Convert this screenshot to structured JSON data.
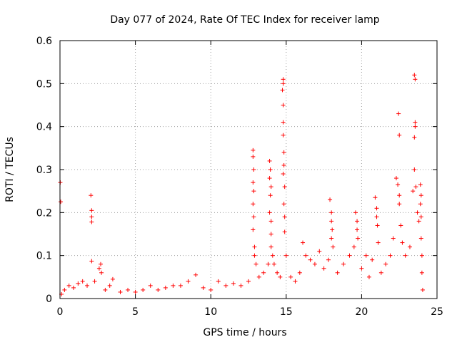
{
  "chart_data": {
    "type": "scatter",
    "title": "Day 077 of 2024, Rate Of TEC Index for receiver lamp",
    "xlabel": "GPS time / hours",
    "ylabel": "ROTI / TECUs",
    "xlim": [
      0,
      25
    ],
    "ylim": [
      0,
      0.6
    ],
    "x_ticks": [
      0,
      5,
      10,
      15,
      20,
      25
    ],
    "x_tick_labels": [
      "0",
      "5",
      "10",
      "15",
      "20",
      "25"
    ],
    "y_ticks": [
      0,
      0.1,
      0.2,
      0.3,
      0.4,
      0.5,
      0.6
    ],
    "y_tick_labels": [
      "0",
      "0.1",
      "0.2",
      "0.3",
      "0.4",
      "0.5",
      "0.6"
    ],
    "grid": true,
    "marker": "+",
    "color": "#ff0000",
    "series": [
      {
        "name": "ROTI",
        "points": [
          [
            0.02,
            0.27
          ],
          [
            0.05,
            0.225
          ],
          [
            0.1,
            0.01
          ],
          [
            0.3,
            0.02
          ],
          [
            0.6,
            0.03
          ],
          [
            0.9,
            0.025
          ],
          [
            1.2,
            0.035
          ],
          [
            1.5,
            0.04
          ],
          [
            1.8,
            0.03
          ],
          [
            2.05,
            0.24
          ],
          [
            2.1,
            0.205
          ],
          [
            2.1,
            0.19
          ],
          [
            2.1,
            0.178
          ],
          [
            2.1,
            0.087
          ],
          [
            2.3,
            0.04
          ],
          [
            2.6,
            0.07
          ],
          [
            2.7,
            0.08
          ],
          [
            2.75,
            0.06
          ],
          [
            3.0,
            0.02
          ],
          [
            3.3,
            0.03
          ],
          [
            3.5,
            0.045
          ],
          [
            4.0,
            0.015
          ],
          [
            4.5,
            0.02
          ],
          [
            5.0,
            0.015
          ],
          [
            5.5,
            0.02
          ],
          [
            6.0,
            0.03
          ],
          [
            6.5,
            0.02
          ],
          [
            7.0,
            0.025
          ],
          [
            7.5,
            0.03
          ],
          [
            8.0,
            0.03
          ],
          [
            8.5,
            0.04
          ],
          [
            9.0,
            0.055
          ],
          [
            9.5,
            0.025
          ],
          [
            10.0,
            0.02
          ],
          [
            10.5,
            0.04
          ],
          [
            11.0,
            0.03
          ],
          [
            11.5,
            0.035
          ],
          [
            12.0,
            0.03
          ],
          [
            12.5,
            0.04
          ],
          [
            12.8,
            0.345
          ],
          [
            12.8,
            0.33
          ],
          [
            12.85,
            0.3
          ],
          [
            12.8,
            0.27
          ],
          [
            12.85,
            0.25
          ],
          [
            12.8,
            0.22
          ],
          [
            12.85,
            0.19
          ],
          [
            12.8,
            0.16
          ],
          [
            12.9,
            0.12
          ],
          [
            12.9,
            0.1
          ],
          [
            13.0,
            0.08
          ],
          [
            13.2,
            0.05
          ],
          [
            13.5,
            0.06
          ],
          [
            13.8,
            0.08
          ],
          [
            13.9,
            0.32
          ],
          [
            13.95,
            0.3
          ],
          [
            13.9,
            0.28
          ],
          [
            14.0,
            0.26
          ],
          [
            13.95,
            0.24
          ],
          [
            13.9,
            0.2
          ],
          [
            14.0,
            0.18
          ],
          [
            14.0,
            0.15
          ],
          [
            14.0,
            0.12
          ],
          [
            14.1,
            0.1
          ],
          [
            14.2,
            0.08
          ],
          [
            14.4,
            0.06
          ],
          [
            14.6,
            0.05
          ],
          [
            14.8,
            0.51
          ],
          [
            14.8,
            0.5
          ],
          [
            14.75,
            0.485
          ],
          [
            14.8,
            0.45
          ],
          [
            14.8,
            0.41
          ],
          [
            14.8,
            0.38
          ],
          [
            14.85,
            0.34
          ],
          [
            14.85,
            0.31
          ],
          [
            14.8,
            0.29
          ],
          [
            14.9,
            0.26
          ],
          [
            14.85,
            0.22
          ],
          [
            14.9,
            0.19
          ],
          [
            14.9,
            0.155
          ],
          [
            15.0,
            0.1
          ],
          [
            15.3,
            0.05
          ],
          [
            15.6,
            0.04
          ],
          [
            15.9,
            0.06
          ],
          [
            16.1,
            0.13
          ],
          [
            16.3,
            0.1
          ],
          [
            16.6,
            0.09
          ],
          [
            16.9,
            0.08
          ],
          [
            17.2,
            0.11
          ],
          [
            17.5,
            0.07
          ],
          [
            17.8,
            0.09
          ],
          [
            17.9,
            0.23
          ],
          [
            18.0,
            0.2
          ],
          [
            18.0,
            0.18
          ],
          [
            18.05,
            0.16
          ],
          [
            18.0,
            0.14
          ],
          [
            18.1,
            0.12
          ],
          [
            18.4,
            0.06
          ],
          [
            18.8,
            0.08
          ],
          [
            19.2,
            0.1
          ],
          [
            19.5,
            0.12
          ],
          [
            19.6,
            0.2
          ],
          [
            19.7,
            0.18
          ],
          [
            19.7,
            0.16
          ],
          [
            19.75,
            0.14
          ],
          [
            20.0,
            0.07
          ],
          [
            20.3,
            0.1
          ],
          [
            20.5,
            0.05
          ],
          [
            20.7,
            0.09
          ],
          [
            20.9,
            0.235
          ],
          [
            21.0,
            0.21
          ],
          [
            21.0,
            0.19
          ],
          [
            21.05,
            0.17
          ],
          [
            21.1,
            0.13
          ],
          [
            21.3,
            0.06
          ],
          [
            21.6,
            0.08
          ],
          [
            21.9,
            0.1
          ],
          [
            22.1,
            0.14
          ],
          [
            22.3,
            0.28
          ],
          [
            22.4,
            0.265
          ],
          [
            22.45,
            0.43
          ],
          [
            22.5,
            0.38
          ],
          [
            22.5,
            0.24
          ],
          [
            22.5,
            0.22
          ],
          [
            22.6,
            0.17
          ],
          [
            22.7,
            0.13
          ],
          [
            22.9,
            0.1
          ],
          [
            23.2,
            0.12
          ],
          [
            23.4,
            0.25
          ],
          [
            23.5,
            0.52
          ],
          [
            23.55,
            0.51
          ],
          [
            23.55,
            0.41
          ],
          [
            23.55,
            0.4
          ],
          [
            23.5,
            0.375
          ],
          [
            23.5,
            0.3
          ],
          [
            23.6,
            0.26
          ],
          [
            23.7,
            0.2
          ],
          [
            23.8,
            0.18
          ],
          [
            23.9,
            0.265
          ],
          [
            23.95,
            0.24
          ],
          [
            23.9,
            0.22
          ],
          [
            23.95,
            0.19
          ],
          [
            23.95,
            0.14
          ],
          [
            24.0,
            0.1
          ],
          [
            24.0,
            0.06
          ],
          [
            24.05,
            0.02
          ]
        ]
      }
    ]
  }
}
